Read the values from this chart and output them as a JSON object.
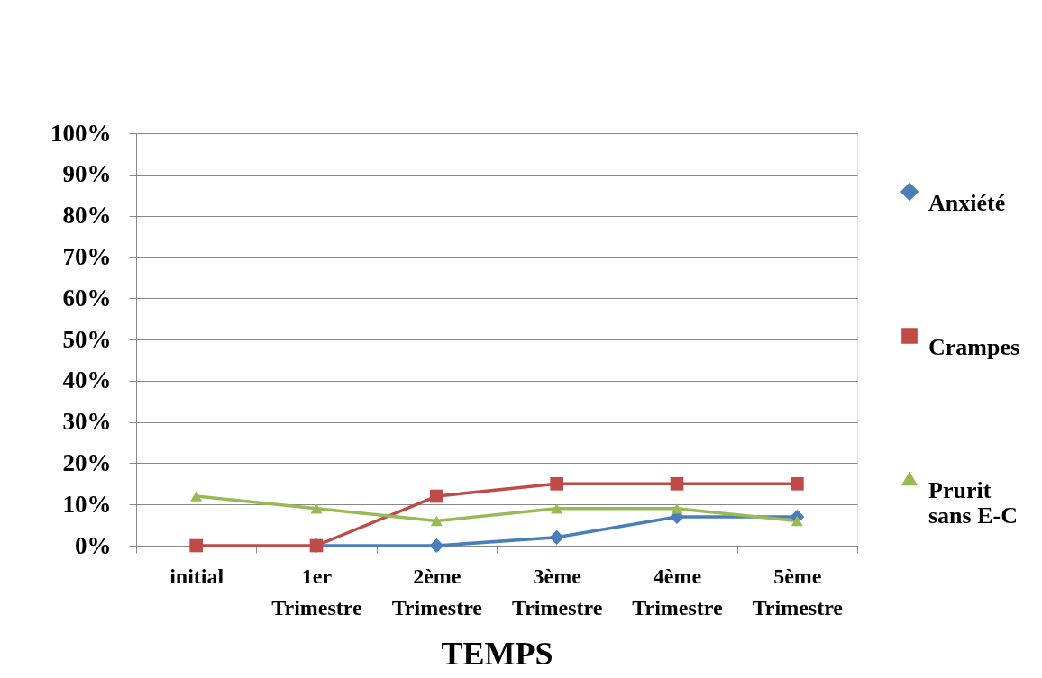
{
  "chart_data": {
    "type": "line",
    "xlabel": "TEMPS",
    "categories": [
      "initial",
      "1er\nTrimestre",
      "2ème\nTrimestre",
      "3ème\nTrimestre",
      "4ème\nTrimestre",
      "5ème\nTrimestre"
    ],
    "series": [
      {
        "name": "Anxiété",
        "color": "#4a7ebb",
        "marker": "diamond",
        "values": [
          null,
          0,
          0,
          2,
          7,
          7
        ]
      },
      {
        "name": "Crampes",
        "color": "#be4b48",
        "marker": "square",
        "values": [
          0,
          0,
          12,
          15,
          15,
          15
        ]
      },
      {
        "name": "Prurit\nsans E-C",
        "color": "#98b954",
        "marker": "triangle",
        "values": [
          12,
          9,
          6,
          9,
          9,
          6
        ]
      }
    ],
    "ylim": [
      0,
      100
    ],
    "yticks": [
      {
        "value": 0,
        "label": "0%"
      },
      {
        "value": 10,
        "label": "10%"
      },
      {
        "value": 20,
        "label": "20%"
      },
      {
        "value": 30,
        "label": "30%"
      },
      {
        "value": 40,
        "label": "40%"
      },
      {
        "value": 50,
        "label": "50%"
      },
      {
        "value": 60,
        "label": "60%"
      },
      {
        "value": 70,
        "label": "70%"
      },
      {
        "value": 80,
        "label": "80%"
      },
      {
        "value": 90,
        "label": "90%"
      },
      {
        "value": 100,
        "label": "100%"
      }
    ],
    "grid": "y",
    "legend": "right",
    "line_style": "solid"
  }
}
